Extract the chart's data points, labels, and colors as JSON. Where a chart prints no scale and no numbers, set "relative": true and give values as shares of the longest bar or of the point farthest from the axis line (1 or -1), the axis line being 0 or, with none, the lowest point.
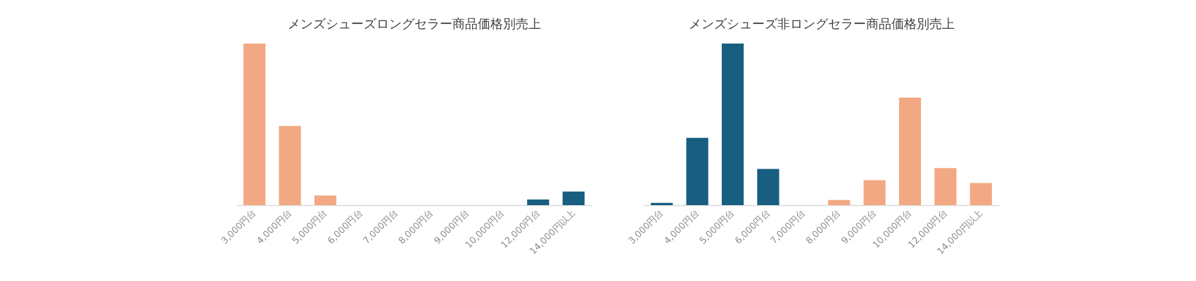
{
  "chart_data": [
    {
      "type": "bar",
      "title": "メンズシューズロングセラー商品価格別売上",
      "relative": true,
      "grid": false,
      "categories": [
        "3,000円台",
        "4,000円台",
        "5,000円台",
        "6,000円台",
        "7,000円台",
        "8,000円台",
        "9,000円台",
        "10,000円台",
        "12,000円台",
        "14,000円以上"
      ],
      "values": [
        1,
        0.49,
        0.06,
        0,
        0,
        0,
        0,
        0,
        0.035,
        0.084
      ],
      "colors": [
        "#f2a983",
        "#f2a983",
        "#f2a983",
        "#f2a983",
        "#f2a983",
        "#f2a983",
        "#f2a983",
        "#f2a983",
        "#175e80",
        "#175e80"
      ]
    },
    {
      "type": "bar",
      "title": "メンズシューズ非ロングセラー商品価格別売上",
      "relative": true,
      "grid": false,
      "categories": [
        "3,000円台",
        "4,000円台",
        "5,000円台",
        "6,000円台",
        "7,000円台",
        "8,000円台",
        "9,000円台",
        "10,000円台",
        "12,000円台",
        "14,000円以上"
      ],
      "values": [
        0.014,
        0.416,
        1,
        0.224,
        0,
        0.032,
        0.154,
        0.665,
        0.229,
        0.137
      ],
      "colors": [
        "#175e80",
        "#175e80",
        "#175e80",
        "#175e80",
        "#175e80",
        "#f2a983",
        "#f2a983",
        "#f2a983",
        "#f2a983",
        "#f2a983"
      ]
    }
  ]
}
